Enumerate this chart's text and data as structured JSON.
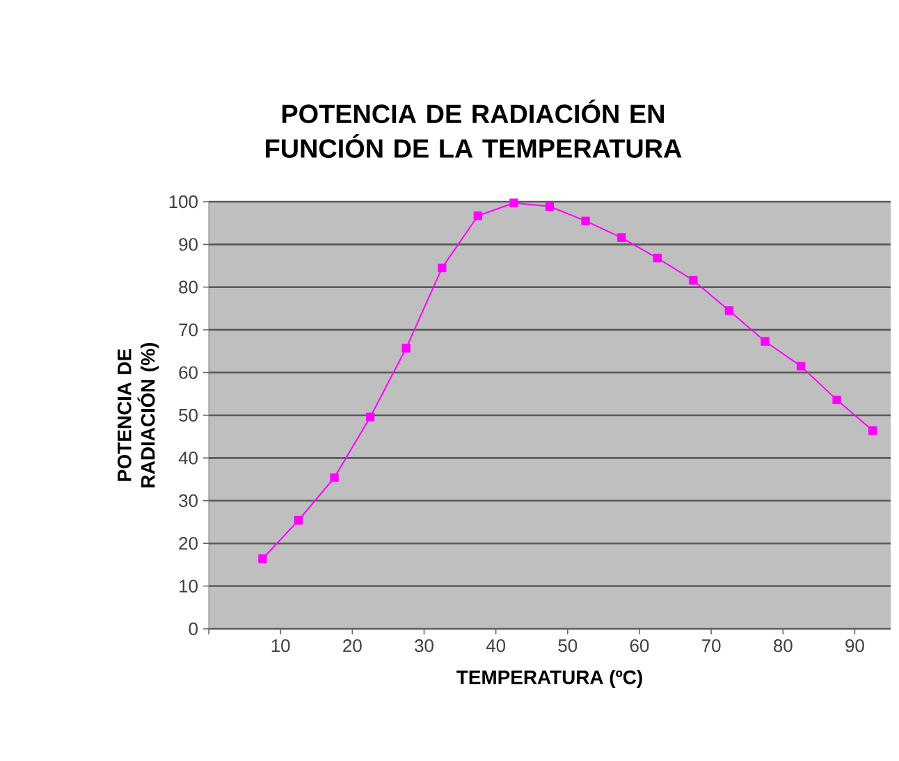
{
  "chart_data": {
    "type": "line",
    "title": "POTENCIA DE RADIACIÓN EN FUNCIÓN DE LA TEMPERATURA",
    "xlabel": "TEMPERATURA (ºC)",
    "ylabel": "POTENCIA DE RADIACIÓN (%)",
    "x": [
      7.5,
      12.5,
      17.5,
      22.5,
      27.5,
      32.5,
      37.5,
      42.5,
      47.5,
      52.5,
      57.5,
      62.5,
      67.5,
      72.5,
      77.5,
      82.5,
      87.5,
      92.5
    ],
    "series": [
      {
        "color": "#ff00ff",
        "values": [
          16.4,
          25.4,
          35.4,
          49.6,
          65.7,
          84.5,
          96.7,
          99.7,
          98.9,
          95.5,
          91.6,
          86.8,
          81.6,
          74.5,
          67.3,
          61.5,
          53.6,
          46.4
        ]
      }
    ],
    "xlim": [
      0,
      95
    ],
    "xticks": [
      {
        "value": 0,
        "label": null
      },
      10,
      20,
      30,
      40,
      50,
      60,
      70,
      80,
      90
    ],
    "ylim": [
      0,
      100
    ],
    "yticks": [
      0,
      10,
      20,
      30,
      40,
      50,
      60,
      70,
      80,
      90,
      100
    ],
    "grid": "y",
    "marker": "square",
    "line_style": "solid"
  }
}
